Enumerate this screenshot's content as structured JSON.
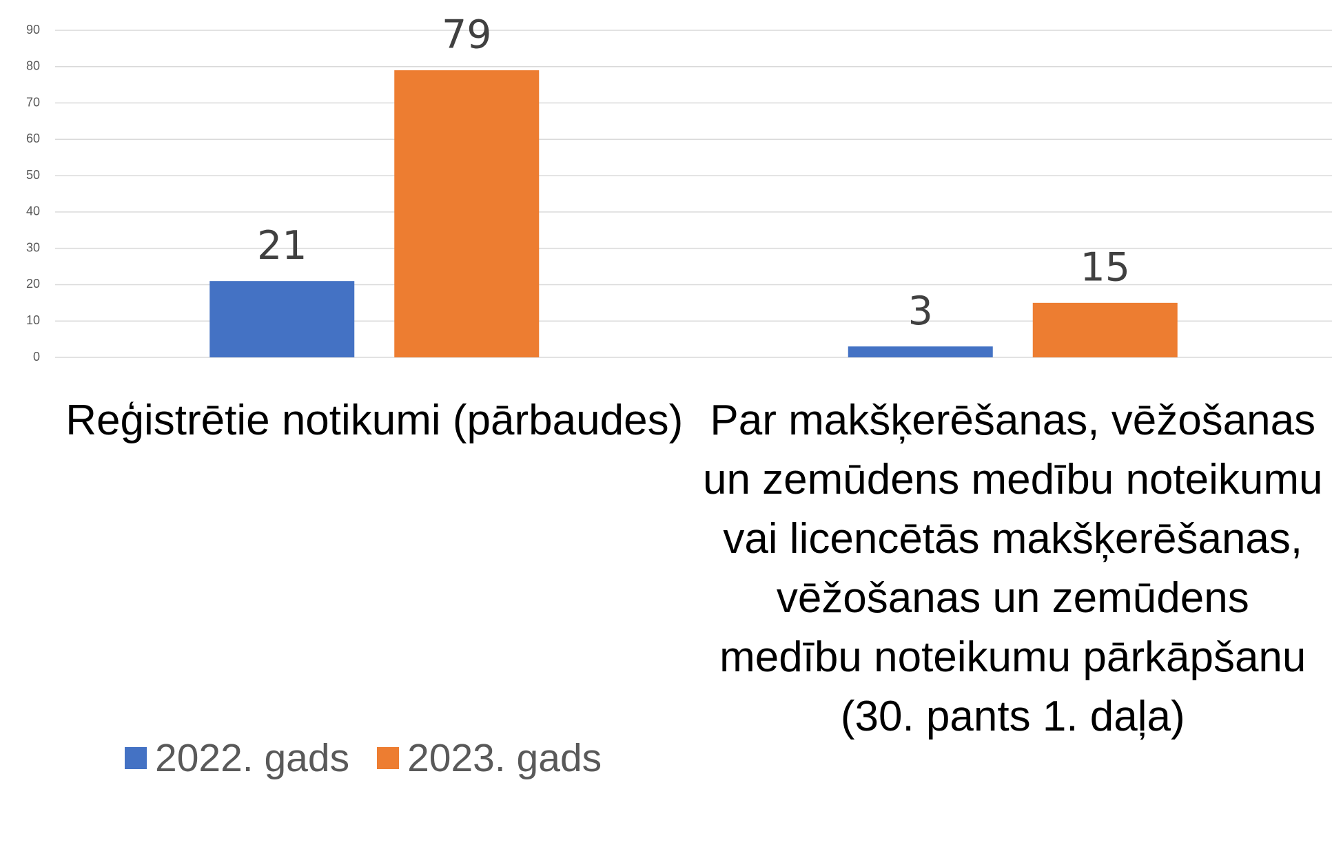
{
  "chart_data": {
    "type": "bar",
    "categories": [
      "Reģistrētie notikumi (pārbaudes)",
      "Par makšķerēšanas, vēžošanas un zemūdens medību noteikumu vai licencētās makšķerēšanas, vēžošanas un zemūdens medību noteikumu pārkāpšanu (30. pants 1. daļa)"
    ],
    "series": [
      {
        "name": "2022. gads",
        "color": "#4472c4",
        "values": [
          21,
          3
        ]
      },
      {
        "name": "2023. gads",
        "color": "#ed7d31",
        "values": [
          79,
          15
        ]
      }
    ],
    "ylim": [
      0,
      90
    ],
    "yticks": [
      0,
      10,
      20,
      30,
      40,
      50,
      60,
      70,
      80,
      90
    ],
    "grid": true,
    "legend": "bottom-left"
  }
}
